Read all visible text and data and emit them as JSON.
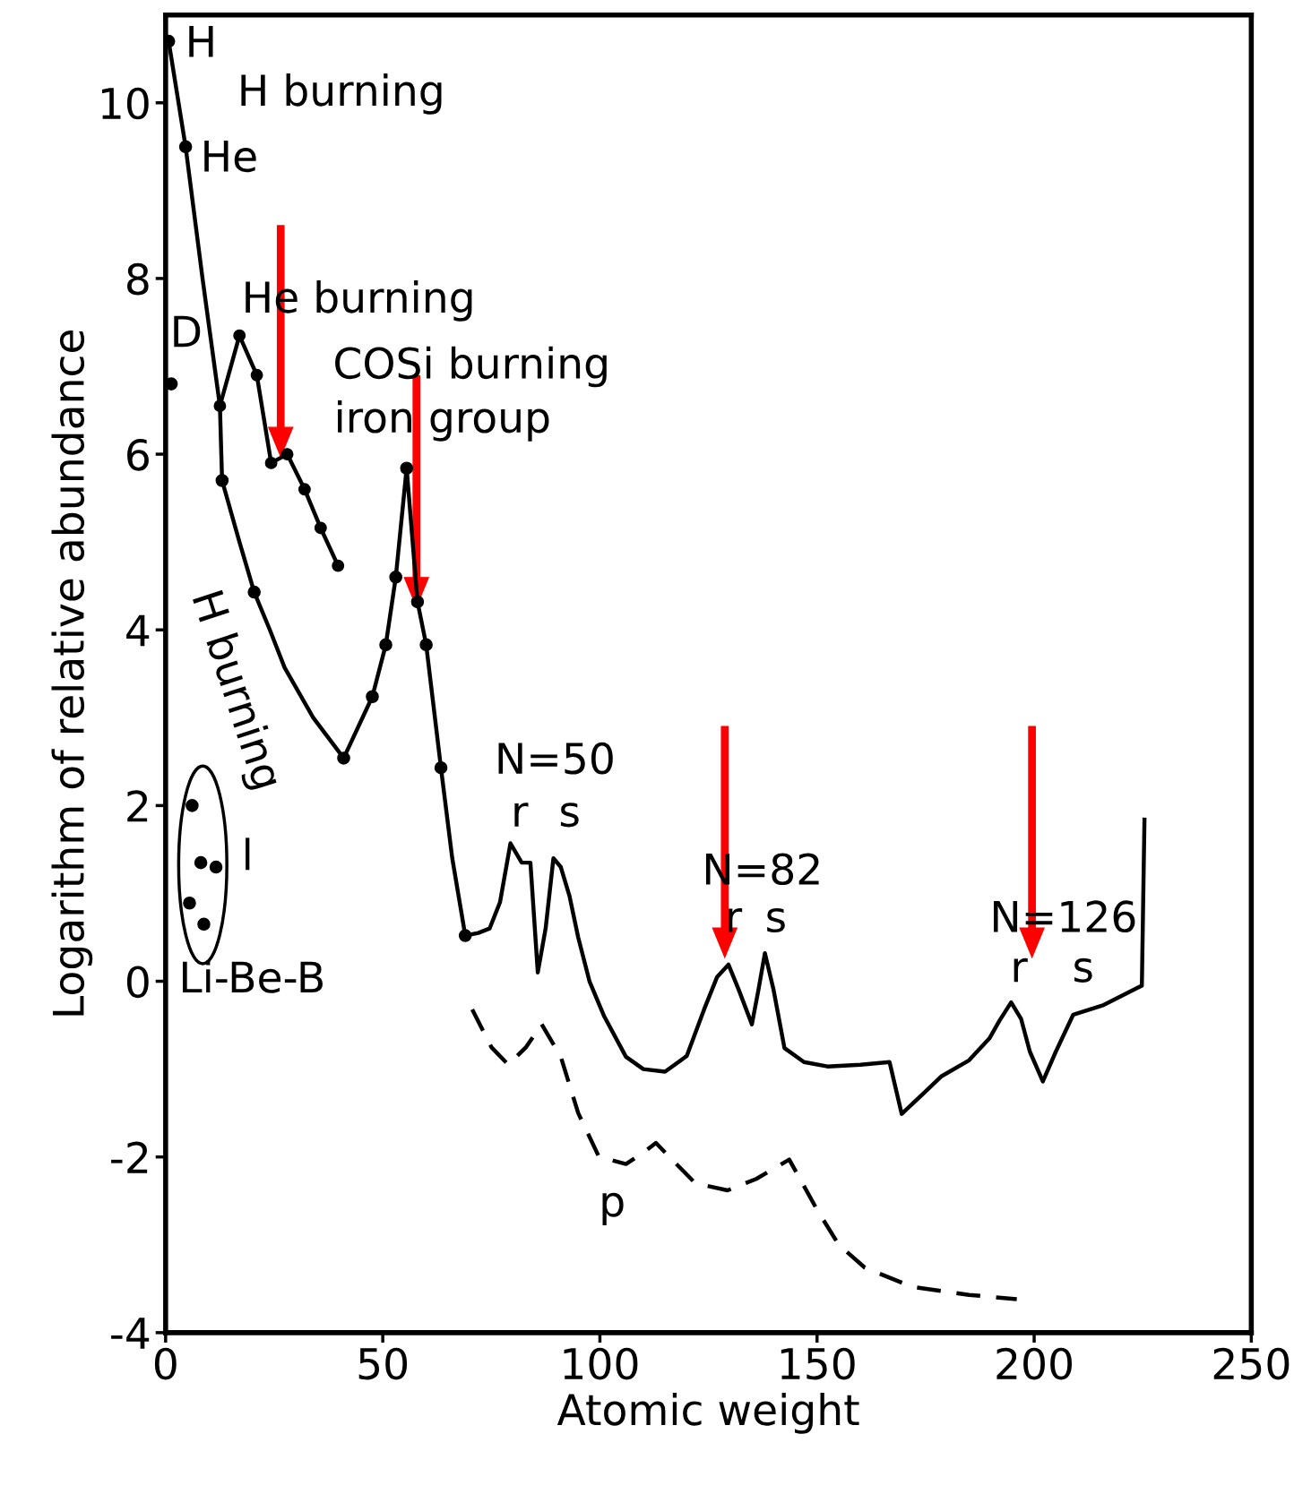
{
  "chart_data": {
    "type": "line",
    "xlabel": "Atomic weight",
    "ylabel": "Logarithm of relative abundance",
    "xlim": [
      0,
      250
    ],
    "ylim": [
      -4,
      11
    ],
    "xticks": [
      0,
      50,
      100,
      150,
      200,
      250
    ],
    "yticks": [
      -4,
      -2,
      0,
      2,
      4,
      6,
      8,
      10
    ],
    "grid": false,
    "line_style": "solid",
    "series": [
      {
        "color": "#000000",
        "marker": "none",
        "x": [
          0.7,
          4.6,
          8.5,
          12.5,
          13,
          17,
          20.4,
          24,
          27.4,
          34,
          41,
          47.6,
          50.7,
          53,
          55.5,
          58,
          60,
          63.4,
          66,
          69,
          72,
          74.6,
          77,
          79.4,
          82,
          84,
          85.7,
          87.5,
          89.3,
          91,
          93,
          95,
          97.6,
          101,
          106,
          110,
          115,
          120,
          124,
          127,
          129.6,
          132,
          135,
          136.5,
          138,
          140,
          142.5,
          147,
          152.4,
          160,
          166.7,
          169.5,
          174,
          178.7,
          185,
          189.7,
          192,
          194.7,
          197,
          199,
          202,
          205,
          209,
          216,
          224.8,
          225.4
        ],
        "values": [
          10.7,
          9.5,
          8.0,
          6.55,
          5.7,
          5.0,
          4.43,
          4.0,
          3.57,
          3.0,
          2.54,
          3.24,
          3.83,
          4.6,
          5.84,
          4.32,
          3.83,
          2.43,
          1.4,
          0.52,
          0.55,
          0.6,
          0.9,
          1.57,
          1.35,
          1.35,
          0.1,
          0.6,
          1.4,
          1.3,
          0.97,
          0.5,
          0.0,
          -0.4,
          -0.86,
          -1.0,
          -1.03,
          -0.85,
          -0.32,
          0.05,
          0.19,
          -0.1,
          -0.49,
          -0.1,
          0.32,
          -0.1,
          -0.76,
          -0.92,
          -0.97,
          -0.95,
          -0.92,
          -1.51,
          -1.3,
          -1.08,
          -0.9,
          -0.65,
          -0.45,
          -0.24,
          -0.43,
          -0.8,
          -1.14,
          -0.8,
          -0.38,
          -0.27,
          -0.05,
          1.84
        ]
      },
      {
        "color": "#000000",
        "marker": "circle",
        "x": [
          12.5,
          17,
          21,
          24.3,
          28,
          32,
          35.7,
          39.7
        ],
        "values": [
          6.55,
          7.35,
          6.9,
          5.9,
          6.0,
          5.6,
          5.16,
          4.73
        ]
      },
      {
        "type": "scatter",
        "color": "#000000",
        "marker": "circle",
        "x": [
          0.7,
          4.6,
          1.3,
          13,
          20.4,
          41,
          47.6,
          50.7,
          53,
          55.5,
          58,
          60,
          63.4,
          69
        ],
        "values": [
          10.7,
          9.5,
          6.8,
          5.7,
          4.43,
          2.54,
          3.24,
          3.83,
          4.6,
          5.84,
          4.32,
          3.83,
          2.43,
          0.52
        ]
      },
      {
        "type": "scatter",
        "color": "#000000",
        "marker": "circle",
        "x": [
          6.1,
          8.1,
          11.6,
          5.5,
          8.8
        ],
        "values": [
          2.0,
          1.35,
          1.3,
          0.89,
          0.65
        ]
      },
      {
        "type": "line",
        "color": "#000000",
        "marker": "none",
        "line_style": "dashed",
        "x": [
          70.6,
          75,
          78.9,
          83,
          86.6,
          91,
          95,
          99.8,
          106,
          110,
          112.9,
          117,
          122,
          129.4,
          136,
          143.6,
          150,
          155,
          161,
          172,
          185,
          196
        ],
        "values": [
          -0.32,
          -0.75,
          -0.95,
          -0.75,
          -0.49,
          -0.86,
          -1.5,
          -2.0,
          -2.08,
          -1.95,
          -1.84,
          -2.05,
          -2.3,
          -2.38,
          -2.25,
          -2.03,
          -2.6,
          -3.0,
          -3.26,
          -3.48,
          -3.57,
          -3.62
        ]
      }
    ],
    "annotations": [
      "H",
      "H burning",
      "He",
      "He burning",
      "D",
      "COSi burning",
      "iron group",
      "H burning",
      "l",
      "Li-Be-B",
      "N=50",
      "r",
      "s",
      "N=82",
      "r",
      "s",
      "N=126",
      "r",
      "s",
      "p"
    ]
  }
}
